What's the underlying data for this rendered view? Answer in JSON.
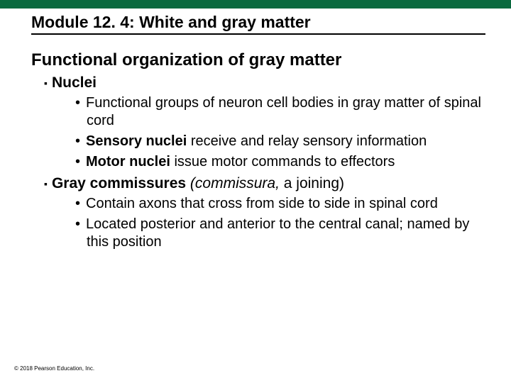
{
  "colors": {
    "top_bar": "#0a6a3f",
    "text": "#000000",
    "background": "#ffffff"
  },
  "fonts": {
    "module_title_size": 23,
    "section_title_size": 24,
    "level1_size": 21,
    "level2_size": 20,
    "copyright_size": 8
  },
  "module_title": "Module 12. 4: White and gray matter",
  "section_title": "Functional organization of gray matter",
  "items": [
    {
      "label": "Nuclei",
      "label_italic": "",
      "label_plain": "",
      "sub": [
        {
          "pre": "",
          "bold": "",
          "post": "Functional groups of neuron cell bodies in gray matter of spinal cord"
        },
        {
          "pre": "",
          "bold": "Sensory nuclei",
          "post": " receive and relay sensory information"
        },
        {
          "pre": "",
          "bold": "Motor nuclei",
          "post": " issue motor commands to effectors"
        }
      ]
    },
    {
      "label": "Gray commissures",
      "label_italic": "(commissura,",
      "label_plain": " a joining)",
      "sub": [
        {
          "pre": "",
          "bold": "",
          "post": "Contain axons that cross from side to side in spinal cord"
        },
        {
          "pre": "",
          "bold": "",
          "post": "Located posterior and anterior to the central canal; named by this position"
        }
      ]
    }
  ],
  "copyright": "© 2018 Pearson Education, Inc."
}
